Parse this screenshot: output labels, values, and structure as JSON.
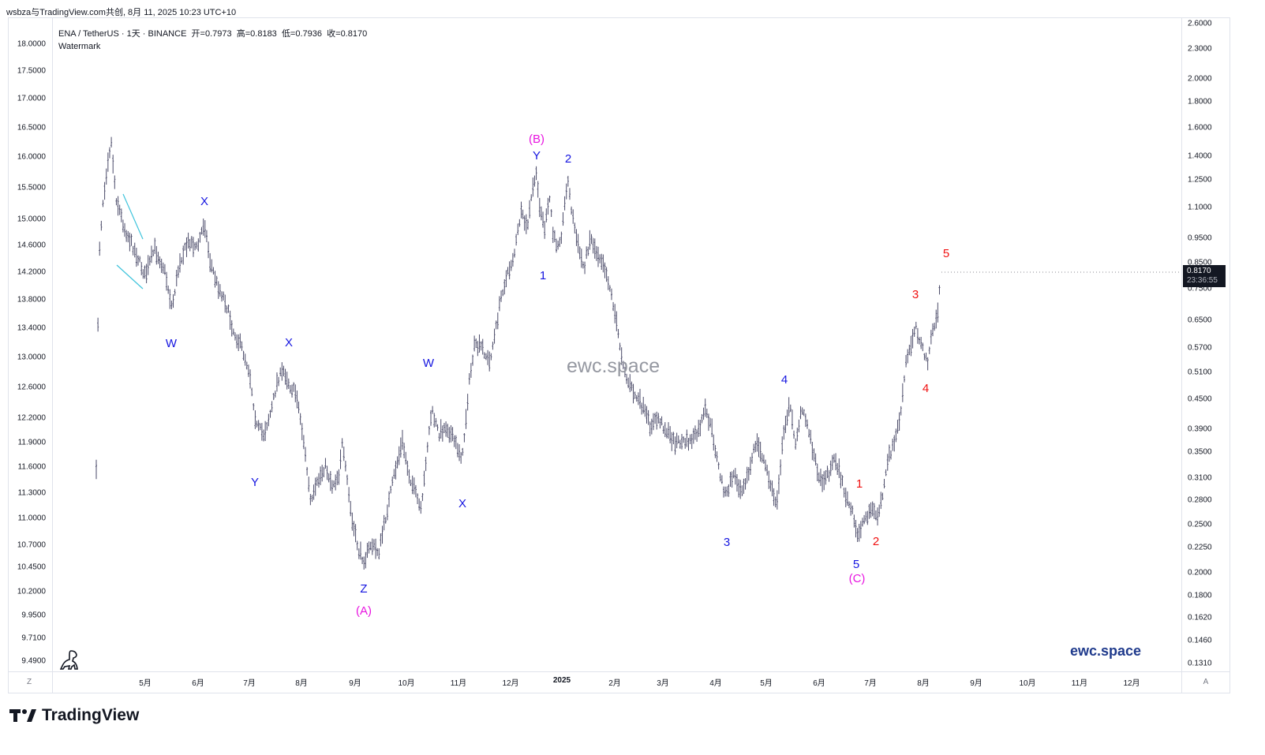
{
  "header": {
    "title": "wsbza与TradingView.com共创, 8月 11, 2025 10:23 UTC+10"
  },
  "legend": {
    "symbol": "ENA / TetherUS · 1天 · BINANCE",
    "open": "开=0.7973",
    "high": "高=0.8183",
    "low": "低=0.7936",
    "close": "收=0.8170",
    "watermark_label": "Watermark"
  },
  "left_axis": [
    "18.0000",
    "17.5000",
    "17.0000",
    "16.5000",
    "16.0000",
    "15.5000",
    "15.0000",
    "14.6000",
    "14.2000",
    "13.8000",
    "13.4000",
    "13.0000",
    "12.6000",
    "12.2000",
    "11.9000",
    "11.6000",
    "11.3000",
    "11.0000",
    "10.7000",
    "10.4500",
    "10.2000",
    "9.9500",
    "9.7100",
    "9.4900"
  ],
  "right_axis": [
    "2.6000",
    "2.3000",
    "2.0000",
    "1.8000",
    "1.6000",
    "1.4000",
    "1.2500",
    "1.1000",
    "0.9500",
    "0.8500",
    "0.7500",
    "0.6500",
    "0.5700",
    "0.5100",
    "0.4500",
    "0.3900",
    "0.3500",
    "0.3100",
    "0.2800",
    "0.2500",
    "0.2250",
    "0.2000",
    "0.1800",
    "0.1620",
    "0.1460",
    "0.1310"
  ],
  "x_axis": [
    "5月",
    "6月",
    "7月",
    "8月",
    "9月",
    "10月",
    "11月",
    "12月",
    "2025",
    "2月",
    "3月",
    "4月",
    "5月",
    "6月",
    "7月",
    "8月",
    "9月",
    "10月",
    "11月",
    "12月"
  ],
  "price_badge": {
    "price": "0.8170",
    "countdown": "23:36:55"
  },
  "watermark_center": "ewc.space",
  "brand": "ewc.space",
  "footer_logo": "TradingView",
  "axis_buttons": {
    "left": "Z",
    "right": "A"
  },
  "colors": {
    "candle": "#4a4a68",
    "wave_blue": "#1515e0",
    "wave_magenta": "#e815e0",
    "wave_red": "#f01010",
    "wedge": "#3fc4dc",
    "badge": "#131722"
  },
  "wave_labels": [
    {
      "text": "X",
      "color": "blue"
    },
    {
      "text": "W",
      "color": "blue"
    },
    {
      "text": "X",
      "color": "blue"
    },
    {
      "text": "Y",
      "color": "blue"
    },
    {
      "text": "Z",
      "color": "blue"
    },
    {
      "text": "(A)",
      "color": "magenta"
    },
    {
      "text": "W",
      "color": "blue"
    },
    {
      "text": "X",
      "color": "blue"
    },
    {
      "text": "(B)",
      "color": "magenta"
    },
    {
      "text": "Y",
      "color": "blue"
    },
    {
      "text": "1",
      "color": "blue"
    },
    {
      "text": "2",
      "color": "blue"
    },
    {
      "text": "3",
      "color": "blue"
    },
    {
      "text": "4",
      "color": "blue"
    },
    {
      "text": "5",
      "color": "blue"
    },
    {
      "text": "(C)",
      "color": "magenta"
    },
    {
      "text": "1",
      "color": "red"
    },
    {
      "text": "2",
      "color": "red"
    },
    {
      "text": "3",
      "color": "red"
    },
    {
      "text": "4",
      "color": "red"
    },
    {
      "text": "5",
      "color": "red"
    }
  ]
}
